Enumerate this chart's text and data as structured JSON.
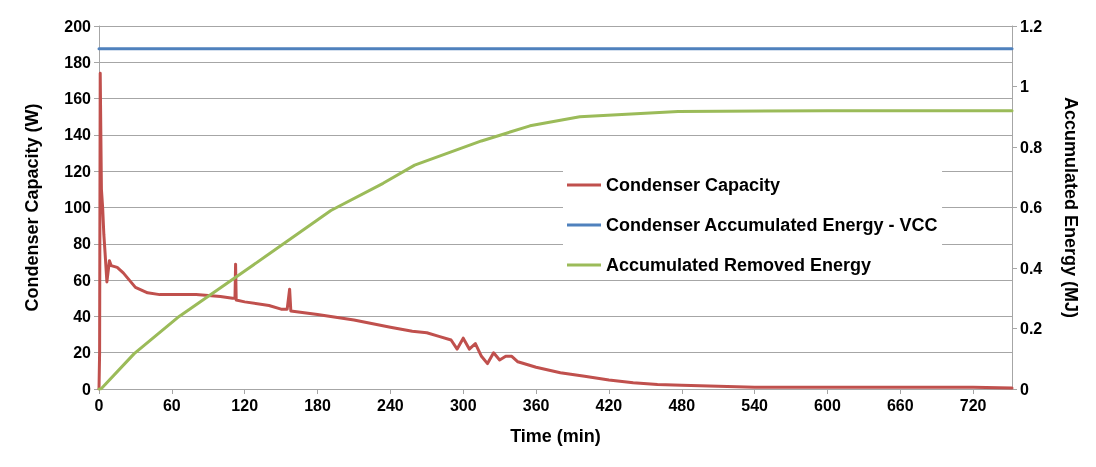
{
  "chart_data": {
    "type": "line",
    "xlabel": "Time (min)",
    "ylabel": "Condenser Capacity (W)",
    "y2label": "Accumulated Energy (MJ)",
    "xlim": [
      0,
      752
    ],
    "xticks": [
      0,
      60,
      120,
      180,
      240,
      300,
      360,
      420,
      480,
      540,
      600,
      660,
      720
    ],
    "ylim": [
      0,
      200
    ],
    "yticks": [
      0,
      20,
      40,
      60,
      80,
      100,
      120,
      140,
      160,
      180,
      200
    ],
    "y2lim": [
      0,
      1.2
    ],
    "y2ticks": [
      0,
      0.2,
      0.4,
      0.6,
      0.8,
      1,
      1.2
    ],
    "grid": "y",
    "legend": "right",
    "marker": "none",
    "line_style": "solid",
    "series": [
      {
        "name": "Condenser Capacity",
        "color": "#c0504d",
        "x": [
          0,
          0.5,
          1,
          2,
          3,
          4,
          5,
          6.5,
          8.6,
          10,
          15,
          20,
          25,
          30,
          40,
          50,
          60,
          80,
          100,
          110,
          112,
          112.5,
          113,
          120,
          140,
          150,
          155,
          157,
          158,
          180,
          210,
          240,
          258,
          270,
          280,
          290,
          295,
          300,
          305,
          310,
          315,
          320,
          325,
          330,
          335,
          340,
          345,
          360,
          380,
          400,
          420,
          440,
          460,
          480,
          510,
          540,
          600,
          660,
          720,
          752
        ],
        "values": [
          0,
          20,
          174,
          110,
          100,
          85,
          75,
          59,
          70.7,
          68,
          67,
          64,
          60,
          56,
          53,
          52,
          52,
          52,
          51,
          50,
          50,
          68.8,
          49,
          48,
          46,
          44,
          44,
          55,
          43,
          41,
          38,
          34,
          31.8,
          31,
          29,
          27,
          22,
          28,
          22,
          25,
          18,
          14,
          20,
          16,
          18,
          18,
          15,
          12,
          9,
          7,
          5,
          3.5,
          2.5,
          2,
          1.5,
          1,
          1,
          1,
          1,
          0.5
        ]
      },
      {
        "name": "Condenser Accumulated Energy - VCC",
        "color": "#4f81bd",
        "axis": "y2",
        "x": [
          0,
          752
        ],
        "values": [
          1.125,
          1.125
        ]
      },
      {
        "name": "Accumulated Removed Energy",
        "color": "#9bbb59",
        "axis": "y2",
        "x": [
          0,
          1.6,
          29,
          66,
          120,
          191,
          234,
          260,
          315,
          355,
          396,
          477,
          600,
          752
        ],
        "values": [
          0,
          0,
          0.117,
          0.24,
          0.39,
          0.59,
          0.68,
          0.74,
          0.82,
          0.87,
          0.9,
          0.917,
          0.92,
          0.92
        ]
      }
    ]
  }
}
